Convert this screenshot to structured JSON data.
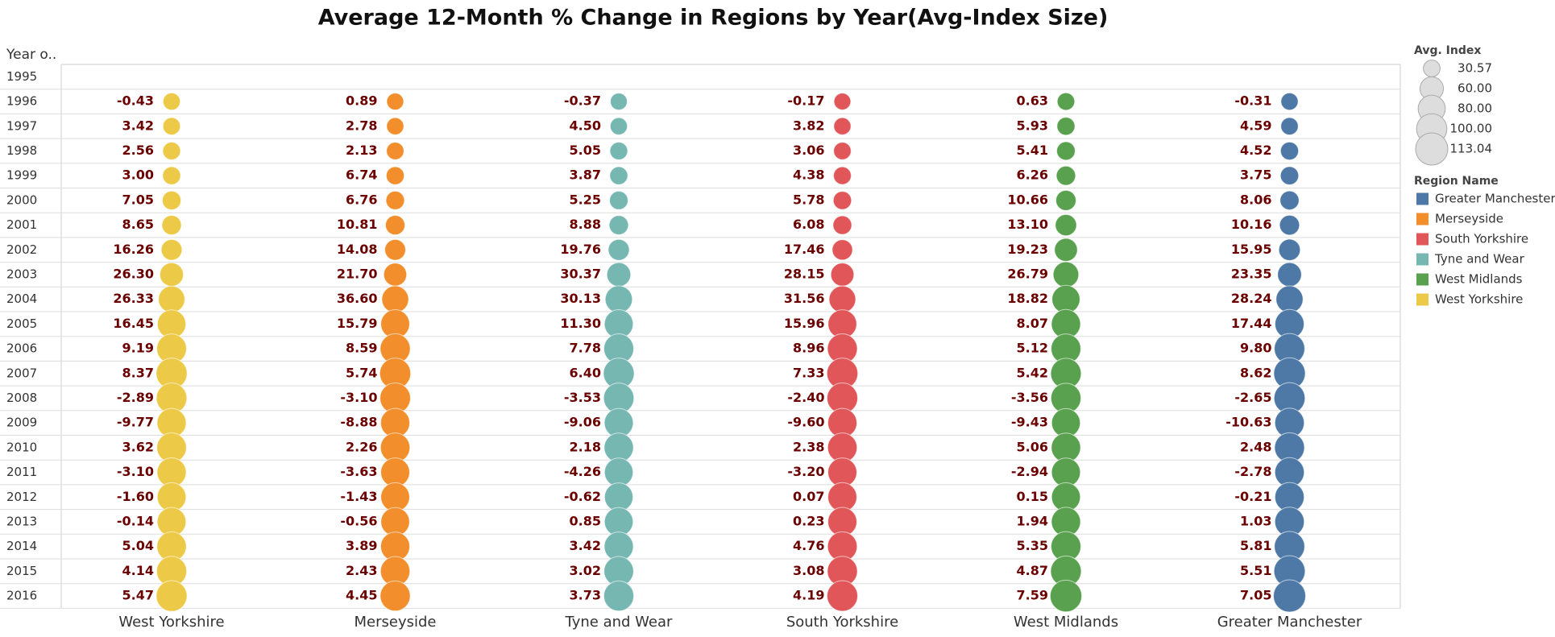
{
  "chart_data": {
    "type": "bubble-table",
    "title": "Average 12-Month % Change in Regions by Year(Avg-Index Size)",
    "row_header": "Year o..",
    "categories": [
      1995,
      1996,
      1997,
      1998,
      1999,
      2000,
      2001,
      2002,
      2003,
      2004,
      2005,
      2006,
      2007,
      2008,
      2009,
      2010,
      2011,
      2012,
      2013,
      2014,
      2015,
      2016
    ],
    "series": [
      {
        "name": "West Yorkshire",
        "color": "#edc948",
        "values": [
          null,
          -0.43,
          3.42,
          2.56,
          3.0,
          7.05,
          8.65,
          16.26,
          26.3,
          26.33,
          16.45,
          9.19,
          8.37,
          -2.89,
          -9.77,
          3.62,
          -3.1,
          -1.6,
          -0.14,
          5.04,
          4.14,
          5.47
        ],
        "value_labels": [
          null,
          "-0.43",
          "3.42",
          "2.56",
          "3.00",
          "7.05",
          "8.65",
          "16.26",
          "26.30",
          "26.33",
          "16.45",
          "9.19",
          "8.37",
          "-2.89",
          "-9.77",
          "3.62",
          "-3.10",
          "-1.60",
          "-0.14",
          "5.04",
          "4.14",
          "5.47"
        ],
        "sizes": [
          null,
          32,
          33,
          34,
          35,
          38,
          41,
          47,
          60,
          76,
          88,
          96,
          104,
          101,
          92,
          95,
          92,
          90,
          90,
          94,
          98,
          103
        ]
      },
      {
        "name": "Merseyside",
        "color": "#f28e2b",
        "values": [
          null,
          0.89,
          2.78,
          2.13,
          6.74,
          6.76,
          10.81,
          14.08,
          21.7,
          36.6,
          15.79,
          8.59,
          5.74,
          -3.1,
          -8.88,
          2.26,
          -3.63,
          -1.43,
          -0.56,
          3.89,
          2.43,
          4.45
        ],
        "value_labels": [
          null,
          "0.89",
          "2.78",
          "2.13",
          "6.74",
          "6.76",
          "10.81",
          "14.08",
          "21.70",
          "36.60",
          "15.79",
          "8.59",
          "5.74",
          "-3.10",
          "-8.88",
          "2.26",
          "-3.63",
          "-1.43",
          "-0.56",
          "3.89",
          "2.43",
          "4.45"
        ],
        "sizes": [
          null,
          31,
          32,
          33,
          35,
          37,
          41,
          47,
          57,
          78,
          90,
          98,
          104,
          101,
          92,
          94,
          91,
          90,
          89,
          92,
          94,
          98
        ]
      },
      {
        "name": "Tyne and Wear",
        "color": "#76b7b2",
        "values": [
          null,
          -0.37,
          4.5,
          5.05,
          3.87,
          5.25,
          8.88,
          19.76,
          30.37,
          30.13,
          11.3,
          7.78,
          6.4,
          -3.53,
          -9.06,
          2.18,
          -4.26,
          -0.62,
          0.85,
          3.42,
          3.02,
          3.73
        ],
        "value_labels": [
          null,
          "-0.37",
          "4.50",
          "5.05",
          "3.87",
          "5.25",
          "8.88",
          "19.76",
          "30.37",
          "30.13",
          "11.30",
          "7.78",
          "6.40",
          "-3.53",
          "-9.06",
          "2.18",
          "-4.26",
          "-0.62",
          "0.85",
          "3.42",
          "3.02",
          "3.73"
        ],
        "sizes": [
          null,
          31,
          32,
          34,
          35,
          37,
          40,
          48,
          62,
          80,
          90,
          97,
          103,
          100,
          91,
          93,
          89,
          88,
          89,
          92,
          95,
          98
        ]
      },
      {
        "name": "South Yorkshire",
        "color": "#e15759",
        "values": [
          null,
          -0.17,
          3.82,
          3.06,
          4.38,
          5.78,
          6.08,
          17.46,
          28.15,
          31.56,
          15.96,
          8.96,
          7.33,
          -2.4,
          -9.6,
          2.38,
          -3.2,
          0.07,
          0.23,
          4.76,
          3.08,
          4.19
        ],
        "value_labels": [
          null,
          "-0.17",
          "3.82",
          "3.06",
          "4.38",
          "5.78",
          "6.08",
          "17.46",
          "28.15",
          "31.56",
          "15.96",
          "8.96",
          "7.33",
          "-2.40",
          "-9.60",
          "2.38",
          "-3.20",
          "0.07",
          "0.23",
          "4.76",
          "3.08",
          "4.19"
        ],
        "sizes": [
          null,
          30.57,
          32,
          33,
          34,
          36,
          38,
          45,
          58,
          77,
          89,
          97,
          104,
          102,
          92,
          94,
          91,
          91,
          91,
          95,
          98,
          102
        ]
      },
      {
        "name": "West Midlands",
        "color": "#59a14f",
        "values": [
          null,
          0.63,
          5.93,
          5.41,
          6.26,
          10.66,
          13.1,
          19.23,
          26.79,
          18.82,
          8.07,
          5.12,
          5.42,
          -3.56,
          -9.43,
          5.06,
          -2.94,
          0.15,
          1.94,
          5.35,
          4.87,
          7.59
        ],
        "value_labels": [
          null,
          "0.63",
          "5.93",
          "5.41",
          "6.26",
          "10.66",
          "13.10",
          "19.23",
          "26.79",
          "18.82",
          "8.07",
          "5.12",
          "5.42",
          "-3.56",
          "-9.43",
          "5.06",
          "-2.94",
          "0.15",
          "1.94",
          "5.35",
          "4.87",
          "7.59"
        ],
        "sizes": [
          null,
          33,
          35,
          37,
          40,
          44,
          49,
          57,
          71,
          85,
          92,
          96,
          101,
          98,
          89,
          93,
          90,
          90,
          92,
          97,
          102,
          109
        ]
      },
      {
        "name": "Greater Manchester",
        "color": "#4e79a7",
        "values": [
          null,
          -0.31,
          4.59,
          4.52,
          3.75,
          8.06,
          10.16,
          15.95,
          23.35,
          28.24,
          17.44,
          9.8,
          8.62,
          -2.65,
          -10.63,
          2.48,
          -2.78,
          -0.21,
          1.03,
          5.81,
          5.51,
          7.05
        ],
        "value_labels": [
          null,
          "-0.31",
          "4.59",
          "4.52",
          "3.75",
          "8.06",
          "10.16",
          "15.95",
          "23.35",
          "28.24",
          "17.44",
          "9.80",
          "8.62",
          "-2.65",
          "-10.63",
          "2.48",
          "-2.78",
          "-0.21",
          "1.03",
          "5.81",
          "5.51",
          "7.05"
        ],
        "sizes": [
          null,
          32,
          33,
          35,
          36,
          39,
          43,
          50,
          62,
          79,
          92,
          101,
          108,
          105,
          94,
          97,
          94,
          93,
          94,
          100,
          106,
          113.04
        ]
      }
    ],
    "size_legend": {
      "title": "Avg. Index",
      "ticks": [
        {
          "value": 30.57,
          "label": "30.57"
        },
        {
          "value": 60,
          "label": "60.00"
        },
        {
          "value": 80,
          "label": "80.00"
        },
        {
          "value": 100,
          "label": "100.00"
        },
        {
          "value": 113.04,
          "label": "113.04"
        }
      ]
    },
    "color_legend_title": "Region Name"
  }
}
